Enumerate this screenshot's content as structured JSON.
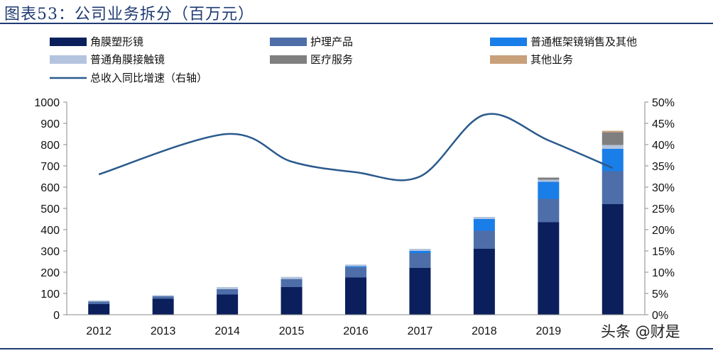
{
  "header": {
    "title": "图表53：公司业务拆分（百万元）"
  },
  "watermark": "头条 @财是",
  "chart_data": {
    "type": "bar",
    "stacked": true,
    "categories": [
      "2012",
      "2013",
      "2014",
      "2015",
      "2016",
      "2017",
      "2018",
      "2019",
      "2020"
    ],
    "series": [
      {
        "name": "角膜塑形镜",
        "color": "#0b1f5c",
        "values": [
          50,
          75,
          95,
          130,
          175,
          220,
          310,
          435,
          520
        ]
      },
      {
        "name": "护理产品",
        "color": "#4d6ea8",
        "values": [
          12,
          12,
          25,
          38,
          48,
          70,
          85,
          110,
          155
        ]
      },
      {
        "name": "普通框架镜销售及其他",
        "color": "#1a7ee8",
        "values": [
          0,
          0,
          0,
          0,
          5,
          10,
          55,
          80,
          105
        ]
      },
      {
        "name": "普通角膜接触镜",
        "color": "#b4c4de",
        "values": [
          5,
          5,
          10,
          10,
          8,
          10,
          10,
          10,
          18
        ]
      },
      {
        "name": "医疗服务",
        "color": "#7f7f7f",
        "values": [
          0,
          0,
          0,
          0,
          0,
          0,
          0,
          10,
          60
        ]
      },
      {
        "name": "其他业务",
        "color": "#c8a07a",
        "values": [
          0,
          0,
          0,
          0,
          0,
          0,
          0,
          0,
          7
        ]
      }
    ],
    "line": {
      "name": "总收入同比增速（右轴）",
      "color": "#2a5a8c",
      "values": [
        0.33,
        null,
        0.425,
        0.36,
        0.335,
        0.325,
        0.47,
        0.41,
        0.345
      ],
      "points": [
        [
          0,
          0.33
        ],
        [
          2,
          0.425
        ],
        [
          3,
          0.36
        ],
        [
          4,
          0.335
        ],
        [
          5,
          0.325
        ],
        [
          6,
          0.47
        ],
        [
          7,
          0.41
        ],
        [
          8,
          0.345
        ]
      ]
    },
    "y_left": {
      "min": 0,
      "max": 1000,
      "ticks": [
        "0",
        "100",
        "200",
        "300",
        "400",
        "500",
        "600",
        "700",
        "800",
        "900",
        "1000"
      ]
    },
    "y_right": {
      "min": 0,
      "max": 0.5,
      "ticks": [
        "0%",
        "5%",
        "10%",
        "15%",
        "20%",
        "25%",
        "30%",
        "35%",
        "40%",
        "45%",
        "50%"
      ]
    },
    "x_ticks": [
      "2012",
      "2013",
      "2014",
      "2015",
      "2016",
      "2017",
      "2018",
      "2019",
      ""
    ],
    "legend_placement": "top"
  }
}
